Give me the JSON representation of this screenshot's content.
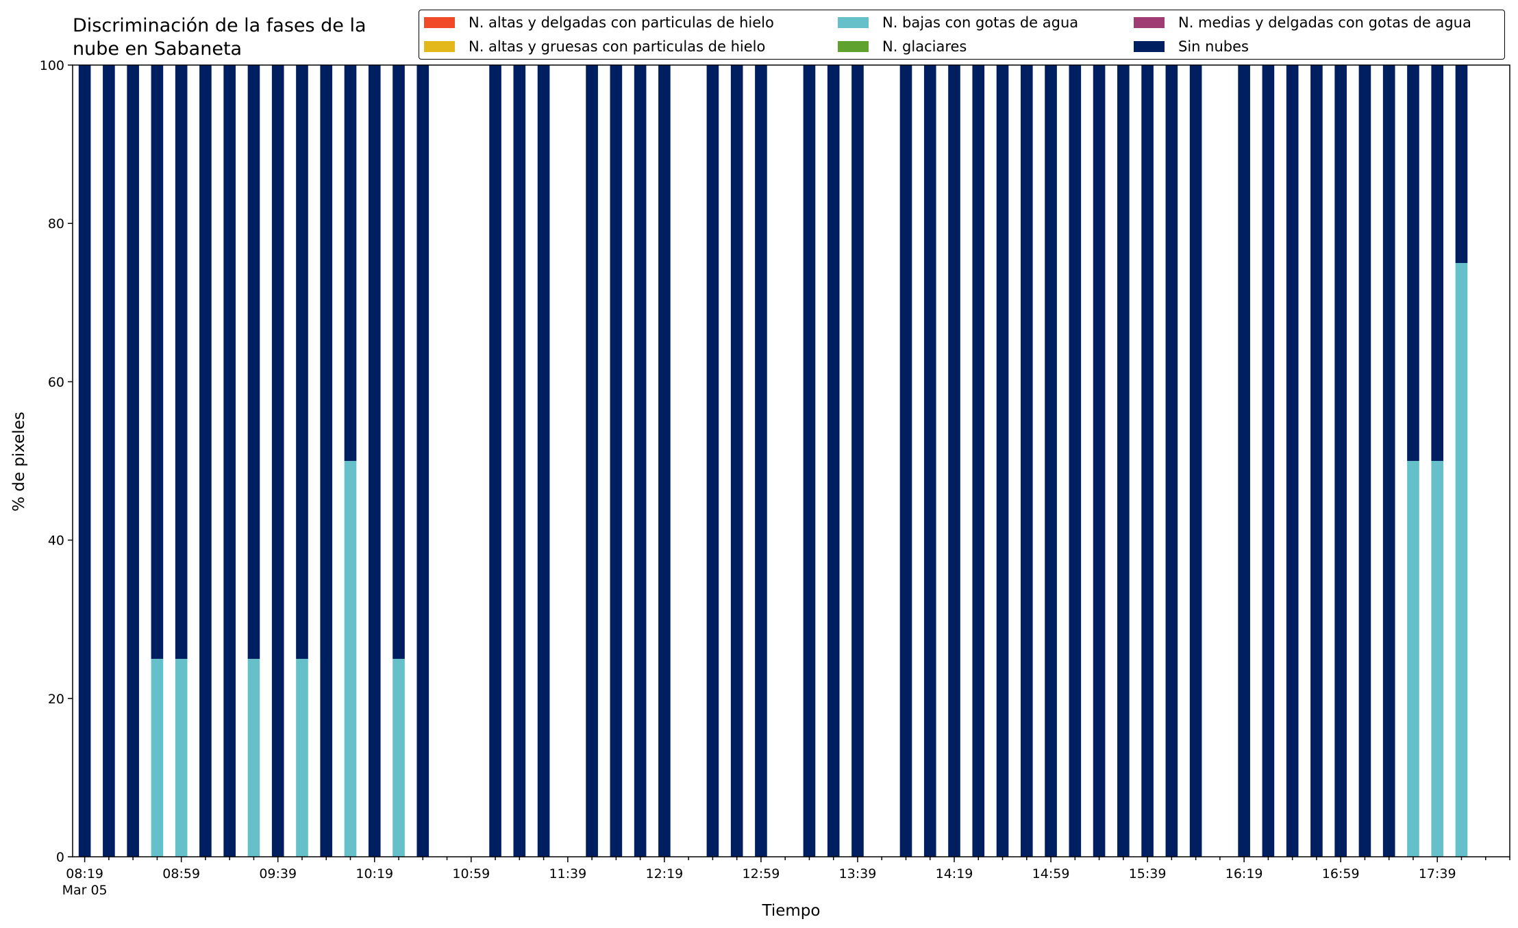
{
  "chart_data": {
    "type": "bar",
    "stacked": true,
    "title": [
      "Discriminación de la fases de la",
      "nube en Sabaneta"
    ],
    "xlabel": "Tiempo",
    "ylabel": "% de pixeles",
    "ylim": [
      0,
      100
    ],
    "yticks": [
      0,
      20,
      40,
      60,
      80,
      100
    ],
    "xtick_labels": [
      "08:19",
      "08:59",
      "09:39",
      "10:19",
      "10:59",
      "11:39",
      "12:19",
      "12:59",
      "13:39",
      "14:19",
      "14:59",
      "15:39",
      "16:19",
      "16:59",
      "17:39"
    ],
    "xtick_sublabel": "Mar 05",
    "x_start": "2019-03-05 08:19",
    "x_step_minutes": 10,
    "x_count": 59,
    "legend_placement": "top-right",
    "series": [
      {
        "name": "N. altas y delgadas con particulas de hielo",
        "color": "#f04a28",
        "values": []
      },
      {
        "name": "N. altas y gruesas con particulas de hielo",
        "color": "#e3b81a",
        "values": []
      },
      {
        "name": "N. bajas con gotas de agua",
        "color": "#65c0c9",
        "values": [
          0,
          0,
          0,
          25,
          25,
          0,
          0,
          25,
          0,
          25,
          0,
          50,
          0,
          25,
          0,
          null,
          null,
          0,
          0,
          0,
          null,
          0,
          0,
          0,
          0,
          null,
          0,
          0,
          0,
          null,
          0,
          0,
          0,
          null,
          0,
          0,
          0,
          0,
          0,
          0,
          0,
          0,
          0,
          0,
          0,
          0,
          0,
          null,
          0,
          0,
          0,
          0,
          0,
          0,
          0,
          50,
          50,
          75,
          null
        ]
      },
      {
        "name": "N. glaciares",
        "color": "#5fa22e",
        "values": []
      },
      {
        "name": "N. medias y delgadas con gotas de agua",
        "color": "#9f3c73",
        "values": []
      },
      {
        "name": "Sin nubes",
        "color": "#001f60",
        "values": [
          100,
          100,
          100,
          75,
          75,
          100,
          100,
          75,
          100,
          75,
          100,
          50,
          100,
          75,
          100,
          null,
          null,
          100,
          100,
          100,
          null,
          100,
          100,
          100,
          100,
          null,
          100,
          100,
          100,
          null,
          100,
          100,
          100,
          null,
          100,
          100,
          100,
          100,
          100,
          100,
          100,
          100,
          100,
          100,
          100,
          100,
          100,
          null,
          100,
          100,
          100,
          100,
          100,
          100,
          100,
          50,
          50,
          25,
          null
        ]
      }
    ]
  }
}
